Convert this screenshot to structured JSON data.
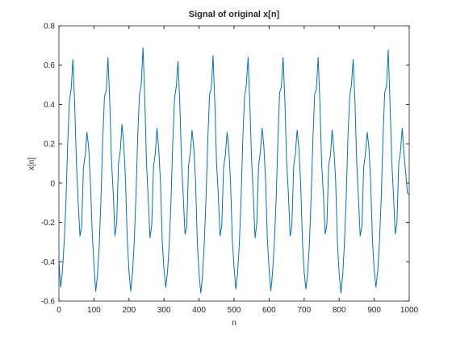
{
  "chart_data": {
    "type": "line",
    "title": "Signal of original x[n]",
    "xlabel": "n",
    "ylabel": "x[n]",
    "x": [
      0,
      5,
      10,
      15,
      20,
      25,
      30,
      35,
      40,
      45,
      50,
      55,
      60,
      65,
      70,
      75,
      80,
      85,
      90,
      95,
      100,
      105,
      110,
      115,
      120,
      125,
      130,
      135,
      140,
      145,
      150,
      155,
      160,
      165,
      170,
      175,
      180,
      185,
      190,
      195,
      200,
      205,
      210,
      215,
      220,
      225,
      230,
      235,
      240,
      245,
      250,
      255,
      260,
      265,
      270,
      275,
      280,
      285,
      290,
      295,
      300,
      305,
      310,
      315,
      320,
      325,
      330,
      335,
      340,
      345,
      350,
      355,
      360,
      365,
      370,
      375,
      380,
      385,
      390,
      395,
      400,
      405,
      410,
      415,
      420,
      425,
      430,
      435,
      440,
      445,
      450,
      455,
      460,
      465,
      470,
      475,
      480,
      485,
      490,
      495,
      500,
      505,
      510,
      515,
      520,
      525,
      530,
      535,
      540,
      545,
      550,
      555,
      560,
      565,
      570,
      575,
      580,
      585,
      590,
      595,
      600,
      605,
      610,
      615,
      620,
      625,
      630,
      635,
      640,
      645,
      650,
      655,
      660,
      665,
      670,
      675,
      680,
      685,
      690,
      695,
      700,
      705,
      710,
      715,
      720,
      725,
      730,
      735,
      740,
      745,
      750,
      755,
      760,
      765,
      770,
      775,
      780,
      785,
      790,
      795,
      800,
      805,
      810,
      815,
      820,
      825,
      830,
      835,
      840,
      845,
      850,
      855,
      860,
      865,
      870,
      875,
      880,
      885,
      890,
      895,
      900,
      905,
      910,
      915,
      920,
      925,
      930,
      935,
      940,
      945,
      950,
      955,
      960,
      965,
      970,
      975,
      980,
      985,
      990,
      995,
      1000
    ],
    "series": [
      {
        "color": "#0072bd",
        "values": [
          -0.4,
          -0.53,
          -0.45,
          -0.3,
          -0.1,
          0.2,
          0.42,
          0.48,
          0.63,
          0.4,
          0.1,
          -0.1,
          -0.27,
          -0.22,
          0.08,
          0.14,
          0.26,
          0.18,
          0.0,
          -0.25,
          -0.42,
          -0.55,
          -0.47,
          -0.32,
          -0.08,
          0.22,
          0.44,
          0.47,
          0.64,
          0.42,
          0.12,
          -0.05,
          -0.27,
          -0.2,
          0.1,
          0.16,
          0.3,
          0.2,
          0.02,
          -0.28,
          -0.45,
          -0.55,
          -0.46,
          -0.3,
          -0.06,
          0.24,
          0.45,
          0.5,
          0.69,
          0.44,
          0.1,
          -0.08,
          -0.28,
          -0.21,
          0.08,
          0.15,
          0.28,
          0.17,
          0.0,
          -0.3,
          -0.44,
          -0.53,
          -0.45,
          -0.31,
          -0.09,
          0.21,
          0.43,
          0.49,
          0.62,
          0.41,
          0.11,
          -0.07,
          -0.26,
          -0.22,
          0.09,
          0.15,
          0.27,
          0.18,
          0.01,
          -0.3,
          -0.46,
          -0.56,
          -0.47,
          -0.3,
          -0.07,
          0.22,
          0.45,
          0.48,
          0.65,
          0.41,
          0.1,
          -0.06,
          -0.27,
          -0.21,
          0.08,
          0.14,
          0.26,
          0.17,
          0.0,
          -0.29,
          -0.43,
          -0.54,
          -0.46,
          -0.31,
          -0.08,
          0.23,
          0.44,
          0.5,
          0.64,
          0.4,
          0.12,
          -0.07,
          -0.28,
          -0.2,
          0.09,
          0.16,
          0.28,
          0.19,
          0.01,
          -0.28,
          -0.44,
          -0.55,
          -0.45,
          -0.3,
          -0.09,
          0.21,
          0.46,
          0.49,
          0.64,
          0.42,
          0.11,
          -0.05,
          -0.27,
          -0.22,
          0.08,
          0.15,
          0.27,
          0.18,
          0.0,
          -0.29,
          -0.45,
          -0.54,
          -0.46,
          -0.31,
          -0.07,
          0.22,
          0.45,
          0.48,
          0.64,
          0.41,
          0.1,
          -0.06,
          -0.26,
          -0.21,
          0.09,
          0.14,
          0.27,
          0.17,
          0.01,
          -0.3,
          -0.46,
          -0.56,
          -0.47,
          -0.31,
          -0.08,
          0.23,
          0.44,
          0.5,
          0.63,
          0.42,
          0.11,
          -0.07,
          -0.27,
          -0.22,
          0.08,
          0.15,
          0.26,
          0.18,
          0.0,
          -0.29,
          -0.44,
          -0.53,
          -0.45,
          -0.3,
          -0.08,
          0.22,
          0.46,
          0.49,
          0.68,
          0.42,
          0.12,
          -0.06,
          -0.26,
          -0.2,
          0.1,
          0.16,
          0.28,
          0.15,
          0.05,
          -0.05,
          -0.06
        ]
      }
    ],
    "xlim": [
      0,
      1000
    ],
    "xticks": [
      0,
      100,
      200,
      300,
      400,
      500,
      600,
      700,
      800,
      900,
      1000
    ],
    "ylim": [
      -0.6,
      0.8
    ],
    "yticks": [
      -0.6,
      -0.4,
      -0.2,
      0,
      0.2,
      0.4,
      0.6,
      0.8
    ]
  }
}
